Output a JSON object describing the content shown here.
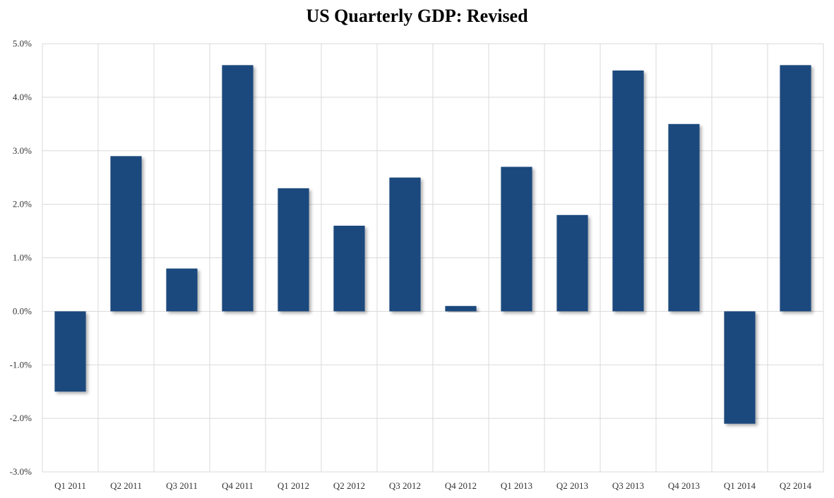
{
  "chart_data": {
    "type": "bar",
    "title": "US Quarterly GDP: Revised",
    "xlabel": "",
    "ylabel": "",
    "categories": [
      "Q1 2011",
      "Q2 2011",
      "Q3 2011",
      "Q4 2011",
      "Q1 2012",
      "Q2 2012",
      "Q3 2012",
      "Q4 2012",
      "Q1 2013",
      "Q2 2013",
      "Q3 2013",
      "Q4 2013",
      "Q1 2014",
      "Q2 2014"
    ],
    "values": [
      -1.5,
      2.9,
      0.8,
      4.6,
      2.3,
      1.6,
      2.5,
      0.1,
      2.7,
      1.8,
      4.5,
      3.5,
      -2.1,
      4.6
    ],
    "ylim": [
      -3.0,
      5.0
    ],
    "yticks": [
      -3.0,
      -2.0,
      -1.0,
      0.0,
      1.0,
      2.0,
      3.0,
      4.0,
      5.0
    ],
    "ytick_labels": [
      "-3.0%",
      "-2.0%",
      "-1.0%",
      "0.0%",
      "1.0%",
      "2.0%",
      "3.0%",
      "4.0%",
      "5.0%"
    ],
    "grid": true,
    "legend": "none",
    "colors": {
      "bar": "#1F497D",
      "grid": "#D9D9D9",
      "shadow": "#BFBFBF"
    }
  }
}
